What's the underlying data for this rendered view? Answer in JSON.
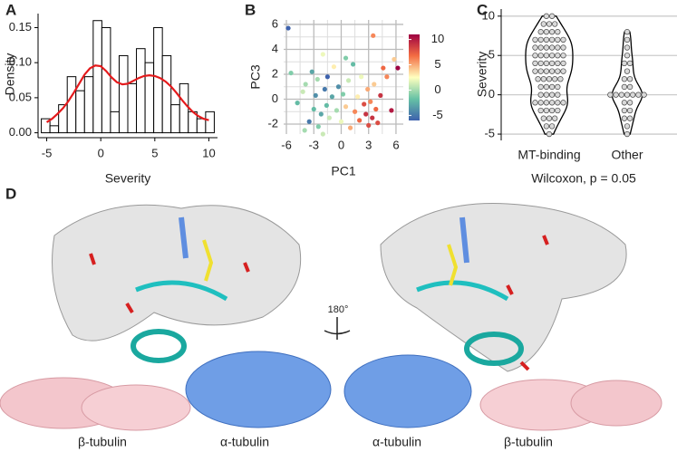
{
  "panel_labels": [
    "A",
    "B",
    "C",
    "D"
  ],
  "chart_data": [
    {
      "type": "histogram",
      "xlabel": "Severity",
      "ylabel": "Density",
      "bins": [
        -5.5,
        -4.7,
        -3.9,
        -3.1,
        -2.3,
        -1.5,
        -0.7,
        0.1,
        0.9,
        1.7,
        2.5,
        3.3,
        4.1,
        4.9,
        5.7,
        6.5,
        7.3,
        8.1,
        8.9,
        9.7,
        10.5
      ],
      "values": [
        0.02,
        0.01,
        0.04,
        0.08,
        0.06,
        0.08,
        0.16,
        0.15,
        0.03,
        0.11,
        0.07,
        0.12,
        0.1,
        0.15,
        0.11,
        0.04,
        0.07,
        0.03,
        0.02,
        0.03
      ],
      "color": "#ffffff",
      "edgecolor": "#000000",
      "density": {
        "color": "#e41a1c",
        "x": [
          -5,
          -4.5,
          -4,
          -3.5,
          -3,
          -2.5,
          -2,
          -1.5,
          -1,
          -0.5,
          0,
          0.5,
          1,
          1.5,
          2,
          2.5,
          3,
          3.5,
          4,
          4.5,
          5,
          5.5,
          6,
          6.5,
          7,
          7.5,
          8,
          8.5,
          9,
          9.5,
          10
        ],
        "values": [
          0.015,
          0.02,
          0.027,
          0.035,
          0.045,
          0.057,
          0.07,
          0.083,
          0.092,
          0.096,
          0.095,
          0.088,
          0.079,
          0.072,
          0.069,
          0.07,
          0.074,
          0.078,
          0.081,
          0.082,
          0.081,
          0.078,
          0.073,
          0.066,
          0.057,
          0.047,
          0.038,
          0.03,
          0.024,
          0.02,
          0.018
        ]
      },
      "xlim": [
        -5.8,
        10.8
      ],
      "xticks": [
        -5,
        0,
        5,
        10
      ],
      "ylim": [
        -0.007,
        0.17
      ],
      "yticks": [
        {
          "value": 0,
          "label": "0.00"
        },
        {
          "value": 0.05,
          "label": "0.05"
        },
        {
          "value": 0.1,
          "label": "0.10"
        },
        {
          "value": 0.15,
          "label": "0.15"
        }
      ]
    },
    {
      "type": "scatter",
      "xlabel": "PC1",
      "ylabel": "PC3",
      "x": [
        -5.8,
        -5.5,
        -4.8,
        -4.2,
        -3.9,
        -3.5,
        -3.2,
        -3.0,
        -2.8,
        -2.6,
        -2.5,
        -2.2,
        -2.0,
        -1.8,
        -1.6,
        -1.5,
        -1.3,
        -1.0,
        -0.8,
        -0.5,
        -0.3,
        0,
        0.2,
        0.5,
        0.8,
        1.0,
        1.3,
        1.5,
        1.8,
        2.0,
        2.2,
        2.5,
        2.7,
        2.9,
        3.0,
        3.2,
        3.4,
        3.6,
        3.8,
        4.0,
        4.3,
        4.6,
        5.0,
        5.5,
        5.8,
        6.2,
        -4.0,
        -2.0,
        0.5,
        3.5
      ],
      "y": [
        5.7,
        2.1,
        -0.3,
        0.6,
        1.2,
        -1.8,
        2.2,
        -0.8,
        0.3,
        1.6,
        -2.2,
        -1.2,
        3.6,
        0.8,
        -0.5,
        1.8,
        -1.5,
        0.2,
        2.6,
        -0.9,
        1.0,
        -1.8,
        0.4,
        -0.6,
        1.5,
        -2.3,
        2.8,
        -1.0,
        0.2,
        -1.7,
        1.8,
        -0.4,
        -1.2,
        0.8,
        -2.1,
        -0.2,
        -1.5,
        1.2,
        -0.8,
        -1.9,
        0.3,
        2.5,
        1.8,
        -0.9,
        3.2,
        2.5,
        -2.5,
        -2.8,
        3.3,
        5.1
      ],
      "color_values": [
        -6,
        -1,
        -2,
        1,
        0,
        -5,
        -3,
        -2,
        -4,
        0,
        -1,
        -3,
        2,
        -5,
        -2,
        -6,
        1,
        -3,
        3,
        0,
        -4,
        2,
        -1,
        4,
        1,
        5,
        -2,
        6,
        3,
        7,
        2,
        8,
        9,
        5,
        8,
        6,
        9,
        4,
        7,
        8,
        9,
        7,
        6,
        10,
        4,
        11,
        0,
        1,
        -1,
        6
      ],
      "colormap": [
        "#3e62ad",
        "#66c2a5",
        "#ffffbf",
        "#f46d43",
        "#9e0142"
      ],
      "clim": [
        -6,
        11
      ],
      "colorbar_ticks": [
        -5,
        0,
        5,
        10
      ],
      "xlim": [
        -6.3,
        6.8
      ],
      "xticks": [
        -6,
        -3,
        0,
        3,
        6
      ],
      "xminor": [
        -4.5,
        -1.5,
        1.5,
        4.5
      ],
      "ylim": [
        -2.8,
        6.36
      ],
      "yticks": [
        -2,
        0,
        2,
        4,
        6
      ],
      "yminor": [
        -1,
        1,
        3,
        5
      ],
      "grid": true
    },
    {
      "type": "violin",
      "ylabel": "Severity",
      "annotation": "Wilcoxon, p = 0.05",
      "categories": [
        "MT-binding",
        "Other"
      ],
      "values": [
        [
          10,
          10,
          9,
          9,
          9,
          8,
          8,
          8,
          8,
          7,
          7,
          7,
          7,
          7,
          7,
          6,
          6,
          6,
          6,
          6,
          6,
          5,
          5,
          5,
          5,
          5,
          5,
          4,
          4,
          4,
          4,
          4,
          4,
          3,
          3,
          3,
          3,
          3,
          3,
          2,
          2,
          2,
          2,
          2,
          1,
          1,
          1,
          1,
          0,
          0,
          0,
          0,
          -1,
          -1,
          -1,
          -1,
          -1,
          -1,
          -2,
          -2,
          -2,
          -2,
          -3,
          -3,
          -3,
          -4,
          -4,
          -5
        ],
        [
          8,
          7,
          6,
          5,
          4,
          4,
          3,
          2,
          2,
          1,
          1,
          0,
          0,
          0,
          0,
          0,
          0,
          0,
          -1,
          -1,
          -2,
          -2,
          -3,
          -3,
          -4,
          -5
        ]
      ],
      "ylim": [
        -5.8,
        10.9
      ],
      "yticks": [
        -5,
        0,
        5,
        10
      ],
      "grid": true
    }
  ],
  "structure": {
    "labels": [
      "β-tubulin",
      "α-tubulin",
      "α-tubulin",
      "β-tubulin"
    ],
    "rotation": "180°"
  }
}
